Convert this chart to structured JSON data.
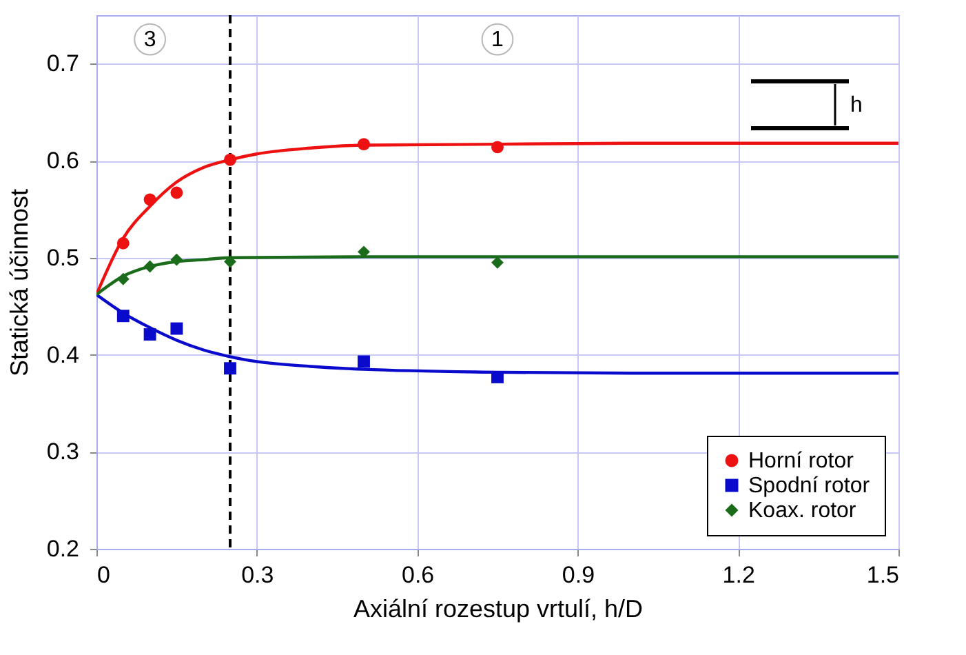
{
  "chart_data": {
    "type": "scatter",
    "xlabel": "Axiální rozestup vrtulí, h/D",
    "ylabel": "Statická účinnost",
    "xlim": [
      0,
      1.5
    ],
    "xticks": [
      0,
      0.3,
      0.6,
      0.9,
      1.2,
      1.5
    ],
    "ylim": [
      0.2,
      0.75
    ],
    "yticks": [
      0.2,
      0.3,
      0.4,
      0.5,
      0.6,
      0.7
    ],
    "grid": true,
    "legend": "bottom right",
    "series": [
      {
        "name": "Horní rotor",
        "marker": "circle",
        "color": "#ee1111",
        "x": [
          0.05,
          0.1,
          0.15,
          0.25,
          0.5,
          0.75
        ],
        "values": [
          0.515,
          0.56,
          0.567,
          0.601,
          0.617,
          0.614
        ]
      },
      {
        "name": "Spodní rotor",
        "marker": "square",
        "color": "#0a0acc",
        "x": [
          0.05,
          0.1,
          0.15,
          0.25,
          0.5,
          0.75
        ],
        "values": [
          0.44,
          0.421,
          0.427,
          0.386,
          0.393,
          0.377
        ]
      },
      {
        "name": "Koax. rotor",
        "marker": "diamond",
        "color": "#1a6b1a",
        "x": [
          0.05,
          0.1,
          0.15,
          0.25,
          0.5,
          0.75
        ],
        "values": [
          0.478,
          0.491,
          0.498,
          0.496,
          0.506,
          0.495
        ]
      },
      {
        "type": "line",
        "color": "#ee1111",
        "x": [
          0,
          0.05,
          0.1,
          0.15,
          0.2,
          0.25,
          0.3,
          0.4,
          0.5,
          0.75,
          1.0,
          1.5
        ],
        "values": [
          0.462,
          0.52,
          0.553,
          0.578,
          0.593,
          0.601,
          0.607,
          0.613,
          0.616,
          0.617,
          0.618,
          0.618
        ]
      },
      {
        "type": "line",
        "color": "#0a0acc",
        "x": [
          0,
          0.05,
          0.1,
          0.15,
          0.2,
          0.25,
          0.3,
          0.4,
          0.5,
          0.75,
          1.0,
          1.5
        ],
        "values": [
          0.462,
          0.443,
          0.428,
          0.415,
          0.405,
          0.398,
          0.393,
          0.388,
          0.385,
          0.382,
          0.381,
          0.381
        ]
      },
      {
        "type": "line",
        "color": "#1a6b1a",
        "x": [
          0,
          0.05,
          0.1,
          0.15,
          0.2,
          0.25,
          0.5,
          1.0,
          1.5
        ],
        "values": [
          0.462,
          0.481,
          0.491,
          0.496,
          0.498,
          0.5,
          0.501,
          0.501,
          0.501
        ]
      }
    ],
    "ref_lines": [
      {
        "axis": "x",
        "value": 0.25,
        "color": "#000000",
        "line_style": "dashed"
      }
    ],
    "annotations": [
      {
        "text": "3",
        "x": 0.1,
        "y": 0.725
      },
      {
        "text": "1",
        "x": 0.75,
        "y": 0.725
      },
      "h"
    ]
  }
}
